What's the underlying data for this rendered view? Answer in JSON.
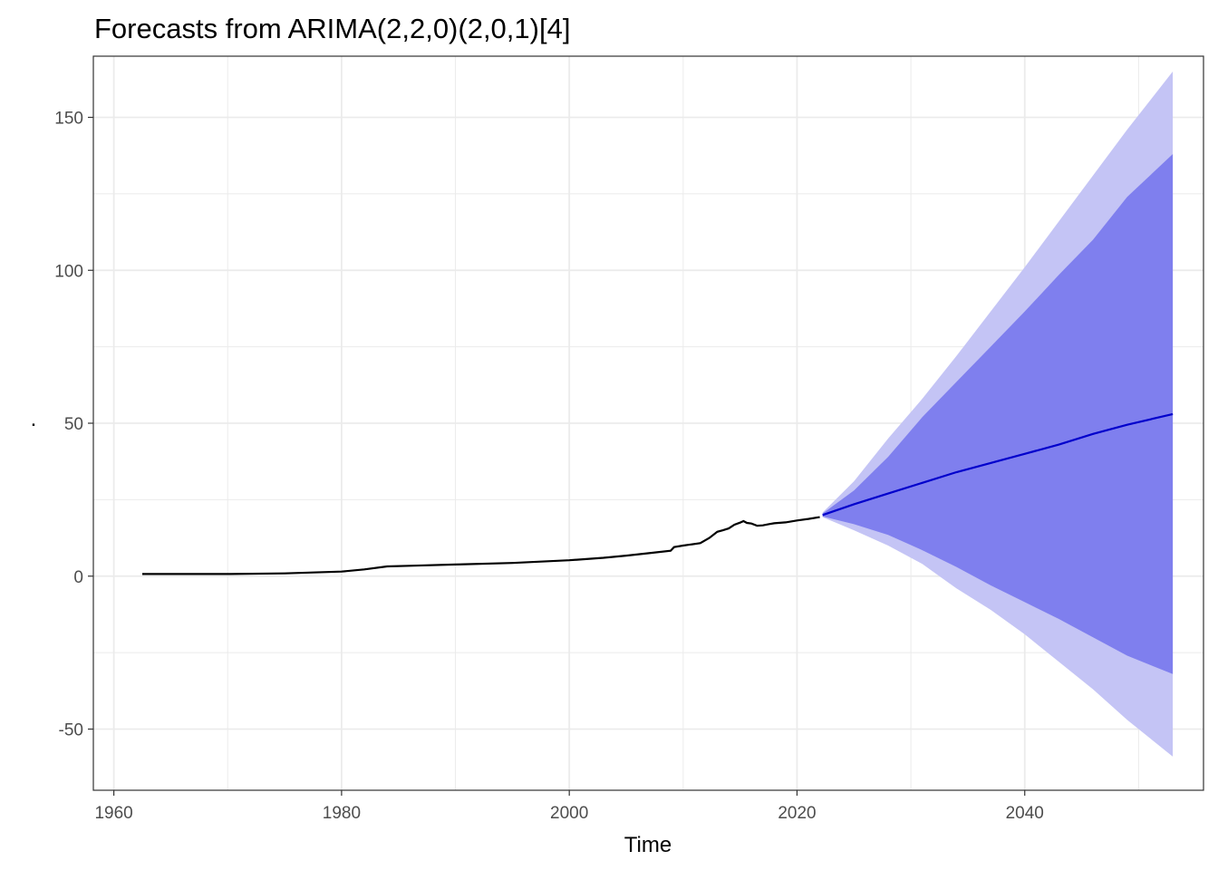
{
  "chart_data": {
    "type": "line",
    "title": "Forecasts from ARIMA(2,2,0)(2,0,1)[4]",
    "xlabel": "Time",
    "ylabel": ".",
    "xlim": [
      1958.2,
      1955.7
    ],
    "ylim": [
      -70,
      170
    ],
    "x_ticks": [
      {
        "value": 1960,
        "label": "1960"
      },
      {
        "value": 1980,
        "label": "1980"
      },
      {
        "value": 2000,
        "label": "2000"
      },
      {
        "value": 2020,
        "label": "2020"
      },
      {
        "value": 2040,
        "label": "2040"
      }
    ],
    "y_ticks": [
      {
        "value": -50,
        "label": "-50"
      },
      {
        "value": 0,
        "label": "0"
      },
      {
        "value": 50,
        "label": "50"
      },
      {
        "value": 100,
        "label": "100"
      },
      {
        "value": 150,
        "label": "150"
      }
    ],
    "grid": true,
    "colors": {
      "history": "#000000",
      "forecast": "#0000cc",
      "band80": "#7f7fee",
      "band95": "#c4c4f5",
      "grid": "#ebebeb",
      "panel_border": "#333333"
    },
    "history": {
      "x": [
        1962.5,
        1965,
        1970,
        1975,
        1980,
        1982,
        1984,
        1986,
        1990,
        1995,
        2000,
        2003,
        2005,
        2007,
        2008.9,
        2009.2,
        2010,
        2011.5,
        2012.3,
        2013,
        2013.5,
        2014,
        2014.5,
        2015,
        2015.3,
        2015.6,
        2016,
        2016.5,
        2017,
        2017.5,
        2018,
        2019,
        2020,
        2021,
        2022
      ],
      "y": [
        0.7,
        0.7,
        0.7,
        0.9,
        1.5,
        2.2,
        3.2,
        3.4,
        3.8,
        4.3,
        5.2,
        6.0,
        6.7,
        7.5,
        8.3,
        9.5,
        10.0,
        10.8,
        12.5,
        14.5,
        15.0,
        15.6,
        16.8,
        17.5,
        18.0,
        17.4,
        17.2,
        16.5,
        16.6,
        17.0,
        17.3,
        17.6,
        18.2,
        18.7,
        19.3
      ]
    },
    "forecast": {
      "x": [
        2022.25,
        2025,
        2028,
        2031,
        2034,
        2037,
        2040,
        2043,
        2046,
        2049,
        2053.0
      ],
      "mean": [
        20.0,
        23.5,
        27.0,
        30.5,
        34.0,
        37.0,
        40.0,
        43.0,
        46.5,
        49.5,
        53.0
      ],
      "lo80": [
        19.5,
        17.0,
        13.5,
        8.5,
        3.0,
        -3.0,
        -8.5,
        -14.0,
        -20.0,
        -26.0,
        -32.0
      ],
      "hi80": [
        20.5,
        28.0,
        39.0,
        52.0,
        63.5,
        75.0,
        86.5,
        98.5,
        110.0,
        124.0,
        138.0
      ],
      "lo95": [
        19.3,
        15.0,
        10.0,
        4.0,
        -4.0,
        -11.0,
        -19.0,
        -28.0,
        -37.0,
        -47.0,
        -59.0
      ],
      "hi95": [
        20.8,
        31.0,
        45.0,
        58.0,
        72.0,
        86.5,
        101.0,
        116.0,
        131.0,
        146.0,
        165.0
      ]
    }
  }
}
